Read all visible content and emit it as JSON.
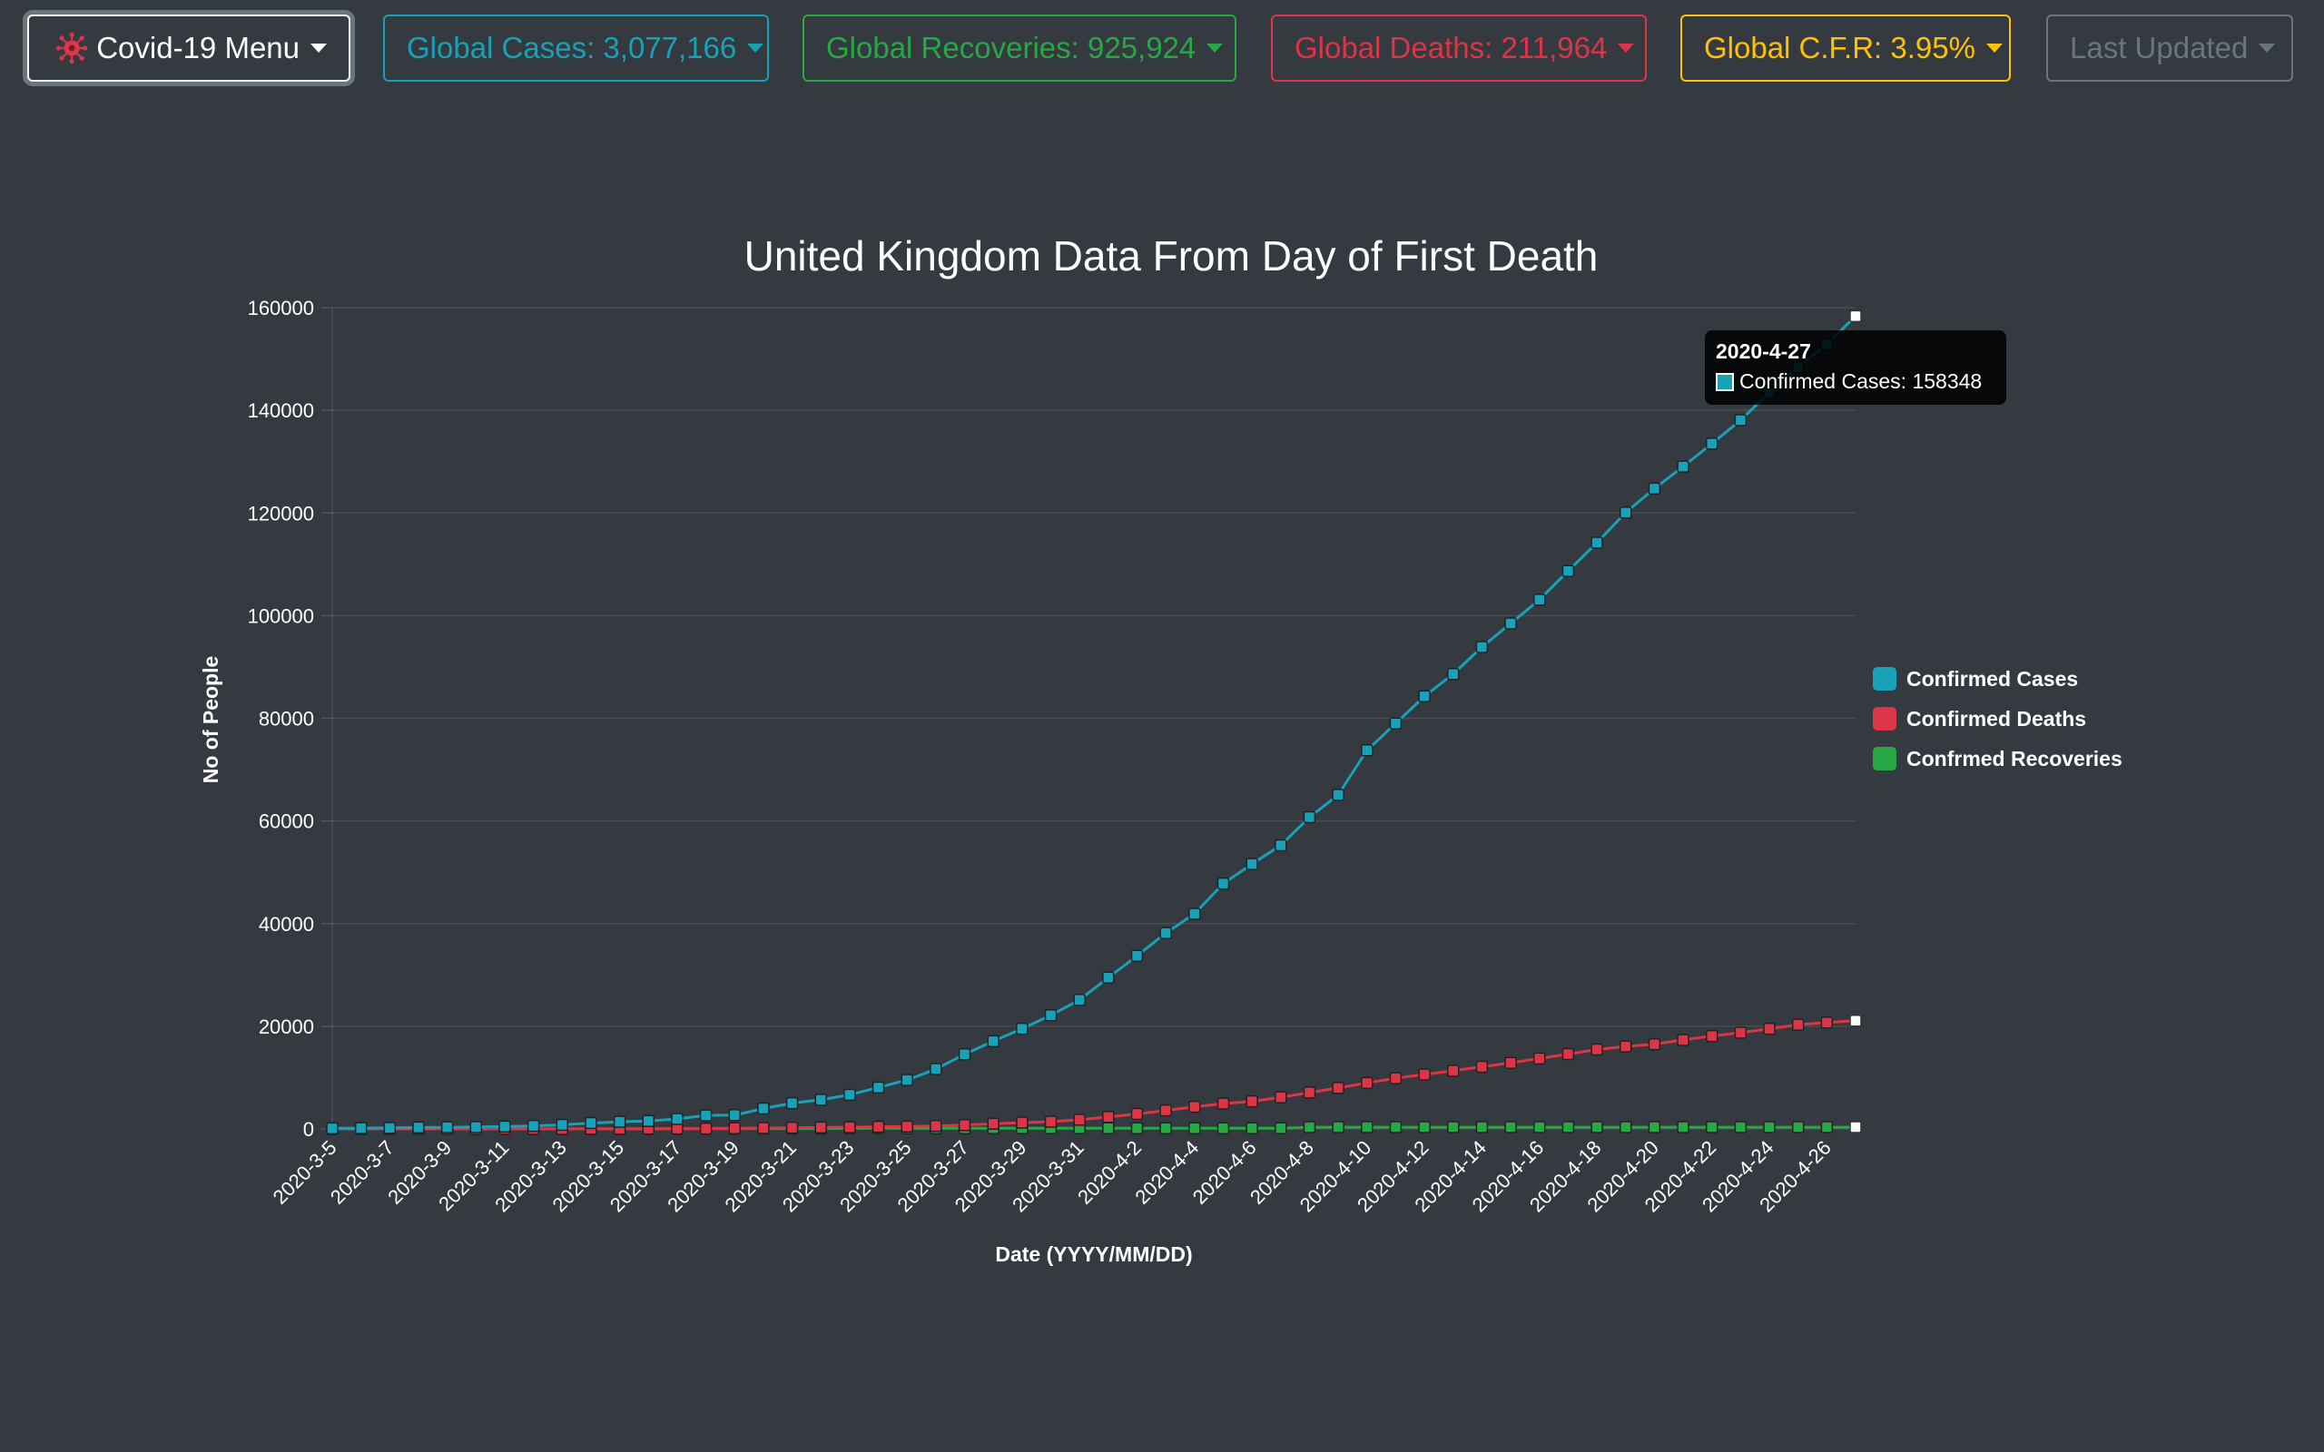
{
  "menu": {
    "main_label": "Covid-19 Menu",
    "global_cases": "Global Cases: 3,077,166",
    "global_recoveries": "Global Recoveries: 925,924",
    "global_deaths": "Global Deaths: 211,964",
    "global_cfr": "Global C.F.R: 3.95%",
    "last_updated": "Last Updated",
    "colors": {
      "cases": "#17a2b8",
      "recoveries": "#28a745",
      "deaths": "#dc3545",
      "cfr": "#ffc107",
      "muted": "#6c757d"
    }
  },
  "tooltip": {
    "date": "2020-4-27",
    "label": "Confirmed Cases: 158348"
  },
  "chart_data": {
    "type": "line",
    "title": "United Kingdom Data From Day of First Death",
    "xlabel": "Date (YYYY/MM/DD)",
    "ylabel": "No of People",
    "ylim": [
      0,
      160000
    ],
    "yticks": [
      0,
      20000,
      40000,
      60000,
      80000,
      100000,
      120000,
      140000,
      160000
    ],
    "grid": true,
    "legend_position": "right",
    "x": [
      "2020-3-5",
      "2020-3-6",
      "2020-3-7",
      "2020-3-8",
      "2020-3-9",
      "2020-3-10",
      "2020-3-11",
      "2020-3-12",
      "2020-3-13",
      "2020-3-14",
      "2020-3-15",
      "2020-3-16",
      "2020-3-17",
      "2020-3-18",
      "2020-3-19",
      "2020-3-20",
      "2020-3-21",
      "2020-3-22",
      "2020-3-23",
      "2020-3-24",
      "2020-3-25",
      "2020-3-26",
      "2020-3-27",
      "2020-3-28",
      "2020-3-29",
      "2020-3-30",
      "2020-3-31",
      "2020-4-1",
      "2020-4-2",
      "2020-4-3",
      "2020-4-4",
      "2020-4-5",
      "2020-4-6",
      "2020-4-7",
      "2020-4-8",
      "2020-4-9",
      "2020-4-10",
      "2020-4-11",
      "2020-4-12",
      "2020-4-13",
      "2020-4-14",
      "2020-4-15",
      "2020-4-16",
      "2020-4-17",
      "2020-4-18",
      "2020-4-19",
      "2020-4-20",
      "2020-4-21",
      "2020-4-22",
      "2020-4-23",
      "2020-4-24",
      "2020-4-25",
      "2020-4-26",
      "2020-4-27"
    ],
    "xtick_labels": [
      "2020-3-5",
      "2020-3-7",
      "2020-3-9",
      "2020-3-11",
      "2020-3-13",
      "2020-3-15",
      "2020-3-17",
      "2020-3-19",
      "2020-3-21",
      "2020-3-23",
      "2020-3-25",
      "2020-3-27",
      "2020-3-29",
      "2020-3-31",
      "2020-4-2",
      "2020-4-4",
      "2020-4-6",
      "2020-4-8",
      "2020-4-10",
      "2020-4-12",
      "2020-4-14",
      "2020-4-16",
      "2020-4-18",
      "2020-4-20",
      "2020-4-22",
      "2020-4-24",
      "2020-4-26"
    ],
    "series": [
      {
        "name": "Confirmed Cases",
        "color": "#17a2b8",
        "values": [
          116,
          164,
          209,
          278,
          321,
          383,
          460,
          594,
          798,
          1140,
          1391,
          1543,
          1950,
          2626,
          2689,
          3983,
          5018,
          5683,
          6650,
          8077,
          9529,
          11658,
          14543,
          17089,
          19522,
          22141,
          25150,
          29474,
          33718,
          38168,
          41903,
          47806,
          51608,
          55242,
          60733,
          65077,
          73758,
          78991,
          84279,
          88621,
          93873,
          98476,
          103093,
          108692,
          114217,
          120067,
          124743,
          129044,
          133495,
          138078,
          143464,
          148377,
          152840,
          158348
        ]
      },
      {
        "name": "Confirmed Deaths",
        "color": "#dc3545",
        "values": [
          1,
          2,
          2,
          3,
          4,
          6,
          8,
          9,
          11,
          21,
          21,
          56,
          56,
          72,
          137,
          177,
          233,
          281,
          335,
          422,
          465,
          578,
          759,
          1019,
          1228,
          1408,
          1789,
          2352,
          2921,
          3605,
          4313,
          4934,
          5373,
          6159,
          7097,
          7978,
          8958,
          9875,
          10612,
          11329,
          12107,
          12868,
          13729,
          14576,
          15464,
          16060,
          16509,
          17337,
          18100,
          18738,
          19506,
          20319,
          20732,
          21092
        ]
      },
      {
        "name": "Confrmed Recoveries",
        "color": "#28a745",
        "values": [
          18,
          18,
          18,
          18,
          18,
          18,
          18,
          18,
          18,
          19,
          19,
          20,
          52,
          52,
          65,
          65,
          65,
          65,
          135,
          135,
          135,
          135,
          135,
          135,
          135,
          135,
          135,
          135,
          135,
          135,
          135,
          135,
          135,
          135,
          344,
          344,
          344,
          344,
          344,
          344,
          344,
          344,
          344,
          344,
          344,
          344,
          344,
          344,
          344,
          344,
          344,
          344,
          344,
          344
        ]
      }
    ]
  }
}
